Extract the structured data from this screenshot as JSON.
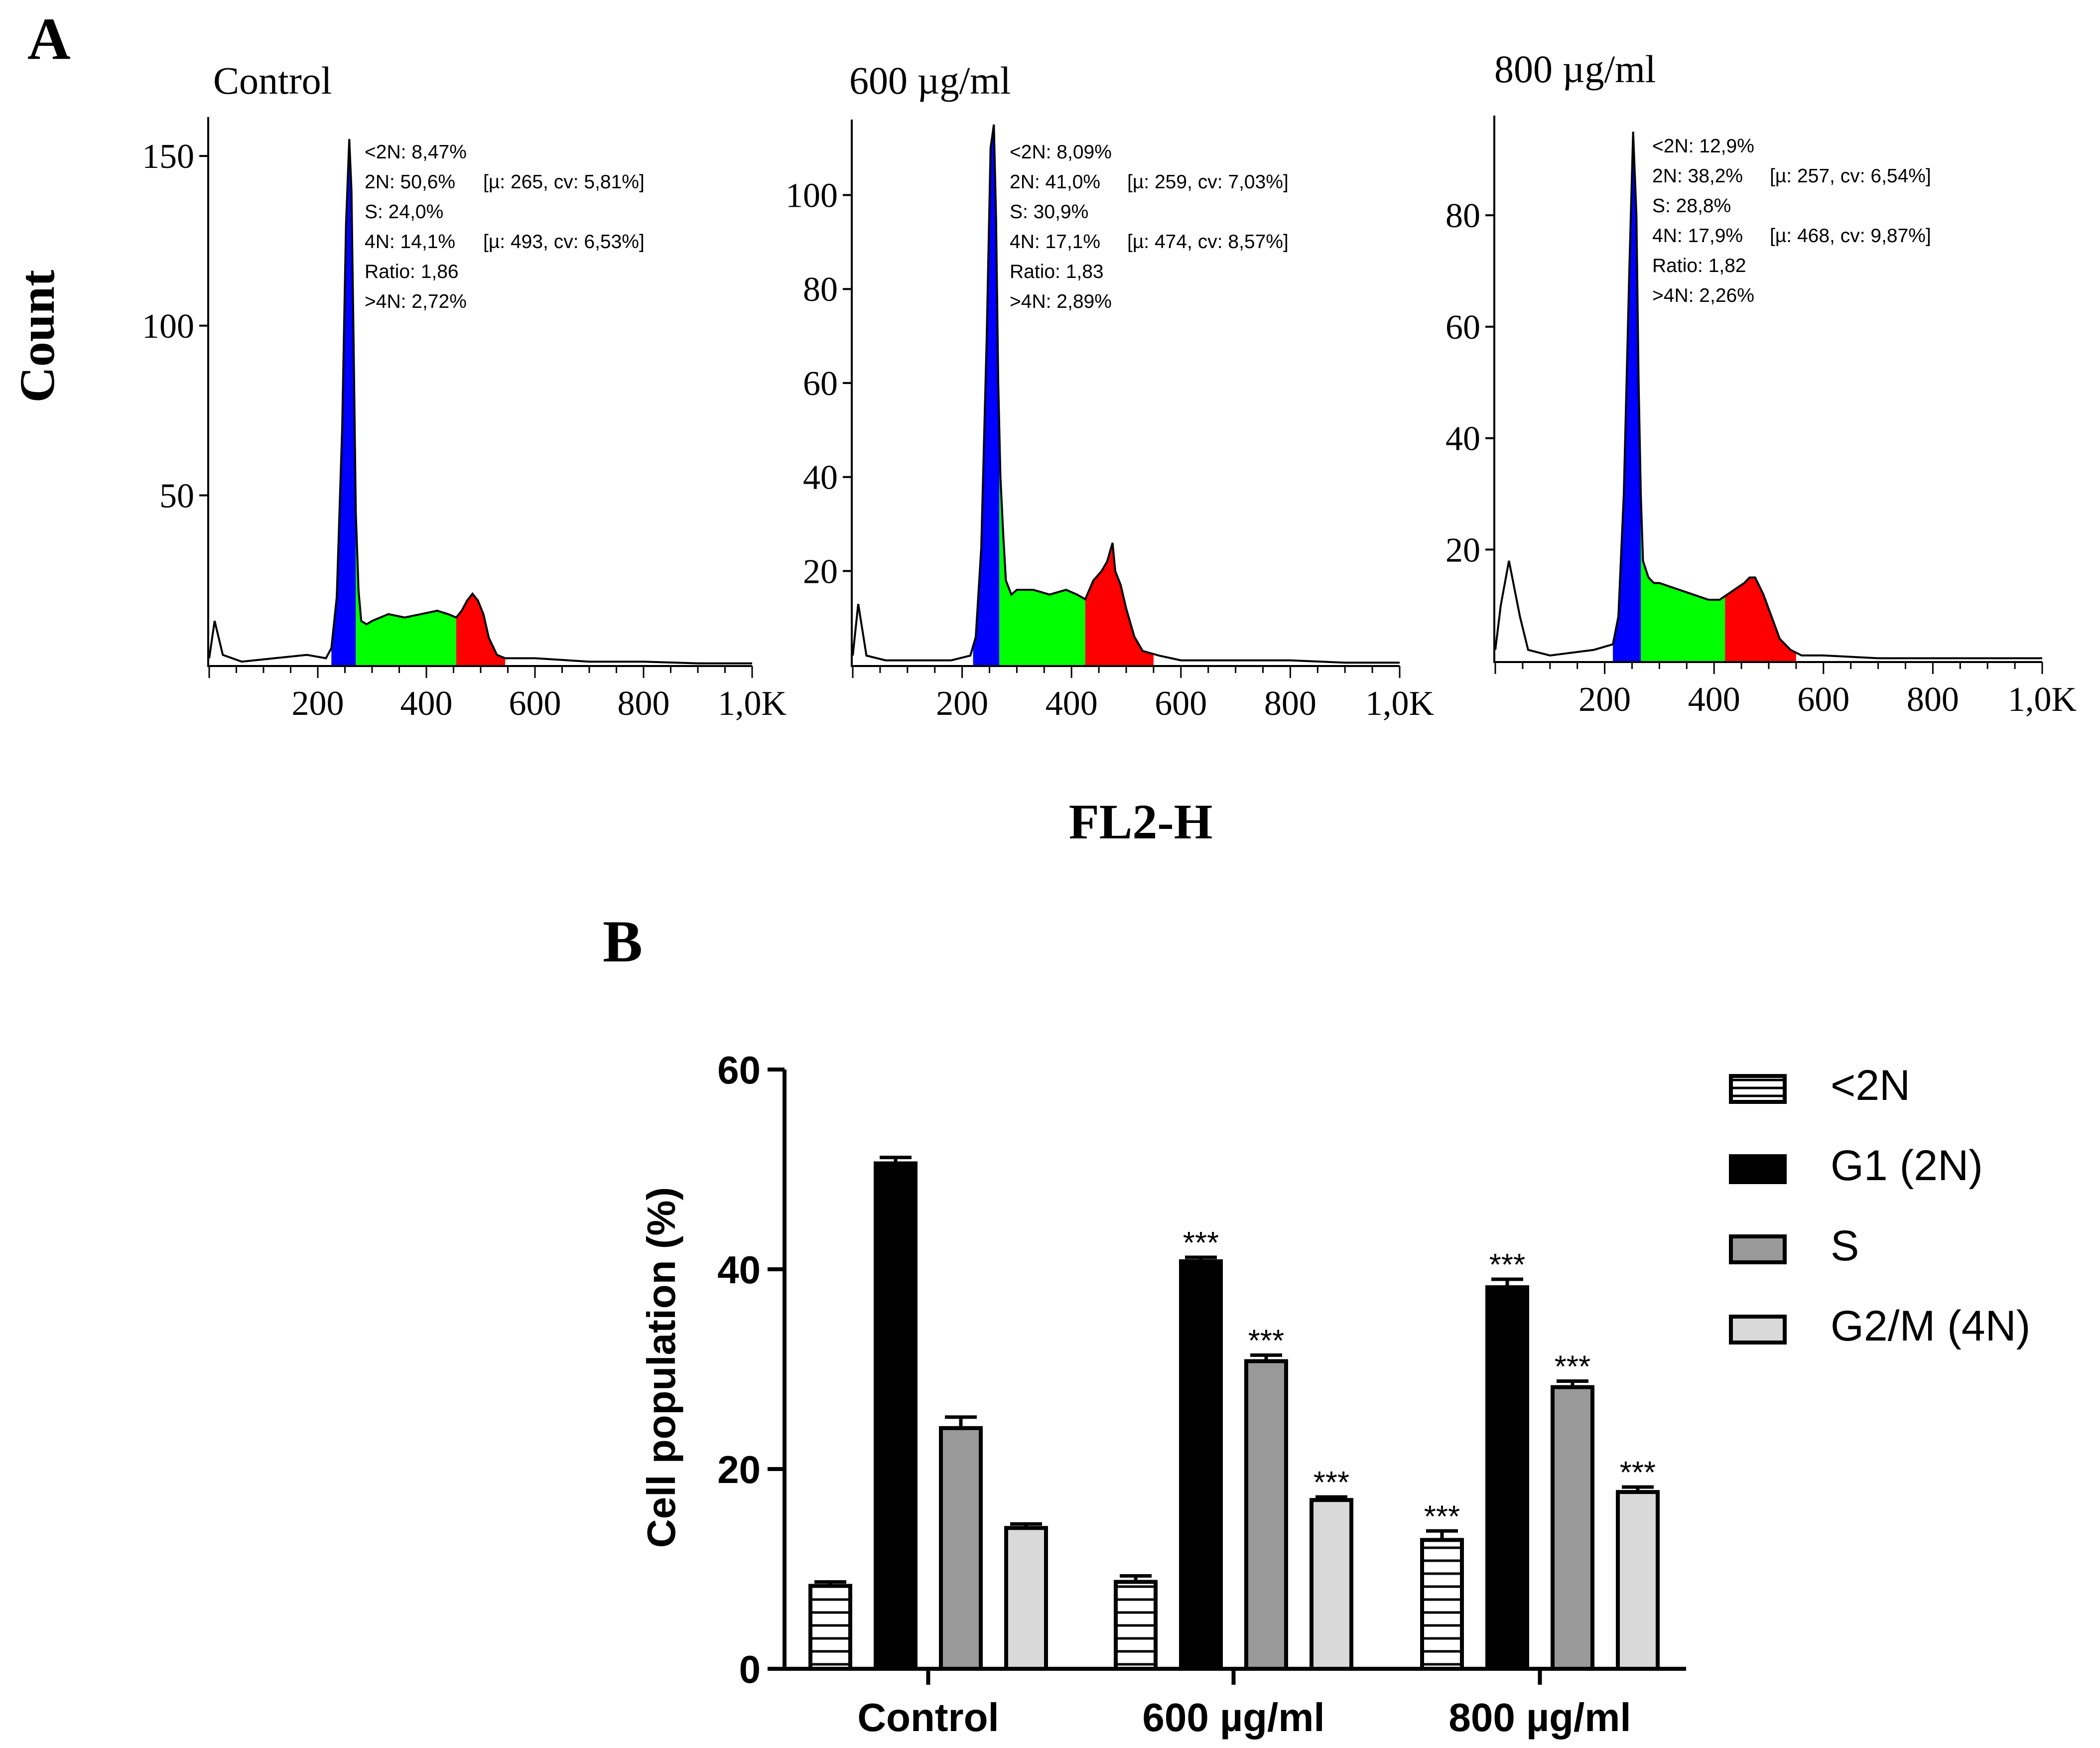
{
  "panel_a": {
    "label": "A",
    "y_axis_title": "Count",
    "x_axis_title": "FL2-H",
    "x_tick_labels": [
      "200",
      "400",
      "600",
      "800",
      "1,0K"
    ],
    "colors": {
      "sub2n": "#0000ff",
      "g1": "#0000ff",
      "s": "#00ff00",
      "g2m": "#ff0000",
      "outline": "#000000"
    }
  },
  "panel_b": {
    "label": "B"
  },
  "chart_data": [
    {
      "type": "area",
      "title": "Control",
      "xlabel": "FL2-H",
      "ylabel": "Count",
      "xlim": [
        0,
        1000
      ],
      "ylim": [
        0,
        160
      ],
      "y_ticks": [
        50,
        100,
        150
      ],
      "x_ticks": [
        200,
        400,
        600,
        800,
        1000
      ],
      "x_tick_labels": [
        "200",
        "400",
        "600",
        "800",
        "1,0K"
      ],
      "histogram": {
        "x": [
          0,
          10,
          25,
          60,
          120,
          180,
          215,
          225,
          235,
          245,
          252,
          258,
          262,
          266,
          270,
          275,
          280,
          290,
          300,
          330,
          360,
          390,
          420,
          440,
          455,
          465,
          475,
          485,
          495,
          505,
          515,
          530,
          545,
          560,
          600,
          700,
          800,
          900,
          1000
        ],
        "y": [
          2,
          13,
          3,
          1,
          2,
          3,
          2,
          5,
          20,
          70,
          130,
          155,
          140,
          95,
          45,
          22,
          13,
          12,
          13,
          15,
          14,
          15,
          16,
          15,
          14,
          16,
          19,
          21,
          19,
          15,
          8,
          3,
          2,
          2,
          2,
          1,
          1,
          0.5,
          0.5
        ],
        "segments": {
          "sub2n": [
            0,
            225
          ],
          "g1": [
            225,
            270
          ],
          "s": [
            270,
            455
          ],
          "g2m": [
            455,
            545
          ]
        }
      },
      "stats_lines": [
        "<2N: 8,47%",
        "2N: 50,6%",
        "S: 24,0%",
        "4N: 14,1%",
        "Ratio: 1,86",
        ">4N: 2,72%"
      ],
      "stats_extras": [
        "",
        "[µ: 265, cv: 5,81%]",
        "",
        "[µ: 493, cv: 6,53%]",
        "",
        ""
      ]
    },
    {
      "type": "area",
      "title": "600 µg/ml",
      "xlabel": "FL2-H",
      "ylabel": "Count",
      "xlim": [
        0,
        1000
      ],
      "ylim": [
        0,
        115
      ],
      "y_ticks": [
        20,
        40,
        60,
        80,
        100
      ],
      "x_ticks": [
        200,
        400,
        600,
        800,
        1000
      ],
      "x_tick_labels": [
        "200",
        "400",
        "600",
        "800",
        "1,0K"
      ],
      "histogram": {
        "x": [
          0,
          10,
          25,
          60,
          120,
          180,
          215,
          225,
          235,
          245,
          252,
          258,
          262,
          266,
          270,
          275,
          280,
          290,
          300,
          330,
          360,
          390,
          410,
          425,
          440,
          455,
          465,
          475,
          480,
          490,
          500,
          515,
          530,
          560,
          600,
          700,
          800,
          900,
          1000
        ],
        "y": [
          2,
          13,
          2,
          1,
          1,
          1,
          2,
          6,
          25,
          70,
          110,
          115,
          95,
          60,
          40,
          28,
          18,
          15,
          16,
          16,
          15,
          16,
          15,
          14,
          18,
          20,
          22,
          26,
          20,
          17,
          12,
          6,
          3,
          2,
          1,
          1,
          1,
          0.5,
          0.5
        ],
        "segments": {
          "sub2n": [
            0,
            220
          ],
          "g1": [
            220,
            268
          ],
          "s": [
            268,
            425
          ],
          "g2m": [
            425,
            550
          ]
        }
      },
      "stats_lines": [
        "<2N: 8,09%",
        "2N: 41,0%",
        "S: 30,9%",
        "4N: 17,1%",
        "Ratio: 1,83",
        ">4N: 2,89%"
      ],
      "stats_extras": [
        "",
        "[µ: 259, cv: 7,03%]",
        "",
        "[µ: 474, cv: 8,57%]",
        "",
        ""
      ]
    },
    {
      "type": "area",
      "title": "800 µg/ml",
      "xlabel": "FL2-H",
      "ylabel": "Count",
      "xlim": [
        0,
        1000
      ],
      "ylim": [
        0,
        97
      ],
      "y_ticks": [
        20,
        40,
        60,
        80
      ],
      "x_ticks": [
        200,
        400,
        600,
        800,
        1000
      ],
      "x_tick_labels": [
        "200",
        "400",
        "600",
        "800",
        "1,0K"
      ],
      "histogram": {
        "x": [
          0,
          10,
          25,
          45,
          60,
          100,
          180,
          215,
          225,
          235,
          245,
          252,
          258,
          262,
          266,
          270,
          280,
          290,
          300,
          330,
          360,
          390,
          410,
          425,
          440,
          455,
          465,
          475,
          490,
          505,
          520,
          540,
          560,
          600,
          700,
          800,
          900,
          1000
        ],
        "y": [
          2,
          10,
          18,
          8,
          2,
          1,
          2,
          3,
          8,
          30,
          70,
          95,
          80,
          50,
          30,
          18,
          15,
          14,
          14,
          13,
          12,
          11,
          11,
          12,
          13,
          14,
          15,
          15,
          12,
          8,
          4,
          2,
          1,
          1,
          0.5,
          0.5,
          0.5,
          0.5
        ],
        "segments": {
          "sub2n": [
            0,
            215
          ],
          "g1": [
            215,
            266
          ],
          "s": [
            266,
            420
          ],
          "g2m": [
            420,
            550
          ]
        }
      },
      "stats_lines": [
        "<2N: 12,9%",
        "2N: 38,2%",
        "S: 28,8%",
        "4N: 17,9%",
        "Ratio: 1,82",
        ">4N: 2,26%"
      ],
      "stats_extras": [
        "",
        "[µ: 257, cv: 6,54%]",
        "",
        "[µ: 468, cv: 9,87%]",
        "",
        ""
      ]
    },
    {
      "type": "bar",
      "title": "",
      "xlabel": "",
      "ylabel": "Cell population (%)",
      "ylim": [
        0,
        60
      ],
      "y_ticks": [
        0,
        20,
        40,
        60
      ],
      "categories": [
        "Control",
        "600 µg/ml",
        "800 µg/ml"
      ],
      "series": [
        {
          "name": "<2N",
          "values": [
            8.3,
            8.7,
            12.9
          ],
          "errors": [
            0.4,
            0.6,
            0.9
          ],
          "significance": [
            "",
            "",
            "***"
          ],
          "fill": "#ffffff",
          "pattern": "horizontal-lines"
        },
        {
          "name": "G1 (2N)",
          "values": [
            50.6,
            40.8,
            38.2
          ],
          "errors": [
            0.6,
            0.4,
            0.8
          ],
          "significance": [
            "",
            "***",
            "***"
          ],
          "fill": "#000000",
          "pattern": "solid"
        },
        {
          "name": "S",
          "values": [
            24.1,
            30.8,
            28.2
          ],
          "errors": [
            1.1,
            0.6,
            0.6
          ],
          "significance": [
            "",
            "***",
            "***"
          ],
          "fill": "#999999",
          "pattern": "solid"
        },
        {
          "name": "G2/M (4N)",
          "values": [
            14.1,
            16.9,
            17.7
          ],
          "errors": [
            0.4,
            0.3,
            0.5
          ],
          "significance": [
            "",
            "***",
            "***"
          ],
          "fill": "#d9d9d9",
          "pattern": "solid"
        }
      ],
      "legend_position": "top-right"
    }
  ]
}
